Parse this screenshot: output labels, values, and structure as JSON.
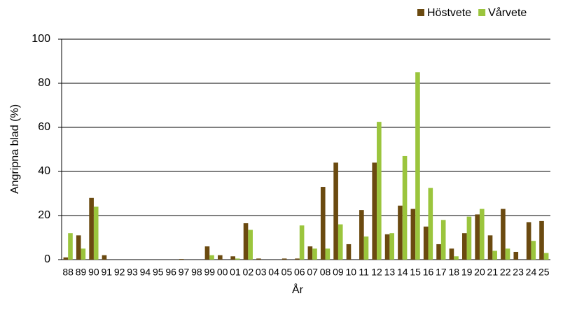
{
  "chart_data": {
    "type": "bar",
    "x_label": "År",
    "y_label": "Angripna blad (%)",
    "categories": [
      "88",
      "89",
      "90",
      "91",
      "92",
      "93",
      "94",
      "95",
      "96",
      "97",
      "98",
      "99",
      "00",
      "01",
      "02",
      "03",
      "04",
      "05",
      "06",
      "07",
      "08",
      "09",
      "10",
      "11",
      "12",
      "13",
      "14",
      "15",
      "16",
      "17",
      "18",
      "19",
      "20",
      "21",
      "22",
      "23",
      "24",
      "25"
    ],
    "series": [
      {
        "name": "Höstvete",
        "color": "#6b4a10",
        "values": [
          1,
          11,
          28,
          2,
          0,
          0,
          0,
          0,
          0,
          0.3,
          0,
          6,
          2,
          1.5,
          16.5,
          0.5,
          0,
          0.5,
          0.5,
          6,
          33,
          44,
          7,
          22.5,
          44,
          11.5,
          24.5,
          23,
          15,
          7,
          5,
          12,
          20.5,
          11,
          23,
          3.5,
          17,
          17.5
        ]
      },
      {
        "name": "Vårvete",
        "color": "#9bc53d",
        "values": [
          12,
          5,
          24,
          0,
          0,
          0,
          0,
          0,
          0,
          0,
          0,
          2,
          0,
          0.5,
          13.5,
          0,
          0,
          0,
          15.5,
          5,
          5,
          16,
          0,
          10.5,
          62.5,
          12,
          47,
          85,
          32.5,
          18,
          1.5,
          19.5,
          23,
          4,
          5,
          0,
          8.5,
          3
        ]
      }
    ],
    "ylim": [
      0,
      100
    ],
    "yticks": [
      0,
      20,
      40,
      60,
      80,
      100
    ],
    "grid": true,
    "legend": "top-right"
  }
}
